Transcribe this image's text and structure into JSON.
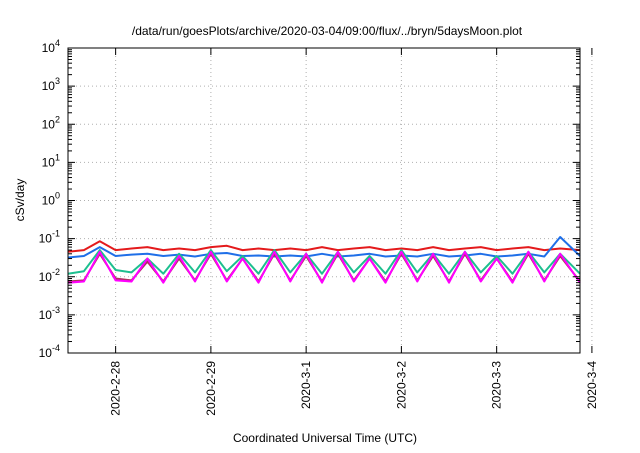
{
  "chart_data": {
    "type": "line",
    "title": "/data/run/goesPlots/archive/2020-03-04/09:00/flux/../bryn/5daysMoon.plot",
    "xlabel": "Coordinated Universal Time (UTC)",
    "ylabel": "cSv/day",
    "y_scale": "log",
    "ylim": [
      0.0001,
      10000
    ],
    "xlim": [
      "2020-02-28T00:00Z",
      "2020-03-04T09:00Z"
    ],
    "x_tick_labels": [
      "2020-2-28",
      "2020-2-29",
      "2020-3-1",
      "2020-3-2",
      "2020-3-3",
      "2020-3-4"
    ],
    "y_ticks": [
      {
        "value": 0.0001,
        "base": "10",
        "exp": "-4"
      },
      {
        "value": 0.001,
        "base": "10",
        "exp": "-3"
      },
      {
        "value": 0.01,
        "base": "10",
        "exp": "-2"
      },
      {
        "value": 0.1,
        "base": "10",
        "exp": "-1"
      },
      {
        "value": 1,
        "base": "10",
        "exp": "0"
      },
      {
        "value": 10,
        "base": "10",
        "exp": "1"
      },
      {
        "value": 100,
        "base": "10",
        "exp": "2"
      },
      {
        "value": 1000,
        "base": "10",
        "exp": "3"
      },
      {
        "value": 10000,
        "base": "10",
        "exp": "4"
      }
    ],
    "grid": true,
    "legend": "none",
    "x": [
      "2020-02-28T00:00Z",
      "2020-02-28T04:00Z",
      "2020-02-28T08:00Z",
      "2020-02-28T12:00Z",
      "2020-02-28T16:00Z",
      "2020-02-28T20:00Z",
      "2020-02-29T00:00Z",
      "2020-02-29T04:00Z",
      "2020-02-29T08:00Z",
      "2020-02-29T12:00Z",
      "2020-02-29T16:00Z",
      "2020-02-29T20:00Z",
      "2020-03-01T00:00Z",
      "2020-03-01T04:00Z",
      "2020-03-01T08:00Z",
      "2020-03-01T12:00Z",
      "2020-03-01T16:00Z",
      "2020-03-01T20:00Z",
      "2020-03-02T00:00Z",
      "2020-03-02T04:00Z",
      "2020-03-02T08:00Z",
      "2020-03-02T12:00Z",
      "2020-03-02T16:00Z",
      "2020-03-02T20:00Z",
      "2020-03-03T00:00Z",
      "2020-03-03T04:00Z",
      "2020-03-03T08:00Z",
      "2020-03-03T12:00Z",
      "2020-03-03T16:00Z",
      "2020-03-03T20:00Z",
      "2020-03-04T00:00Z",
      "2020-03-04T04:00Z",
      "2020-03-04T09:00Z"
    ],
    "series": [
      {
        "color": "#e41a1c",
        "values": [
          0.045,
          0.05,
          0.085,
          0.05,
          0.055,
          0.06,
          0.05,
          0.055,
          0.05,
          0.06,
          0.065,
          0.05,
          0.055,
          0.05,
          0.055,
          0.05,
          0.06,
          0.05,
          0.055,
          0.06,
          0.05,
          0.055,
          0.05,
          0.06,
          0.05,
          0.055,
          0.06,
          0.05,
          0.055,
          0.06,
          0.05,
          0.055,
          0.05
        ]
      },
      {
        "color": "#1f6fe8",
        "values": [
          0.032,
          0.035,
          0.06,
          0.035,
          0.038,
          0.04,
          0.035,
          0.038,
          0.034,
          0.04,
          0.042,
          0.035,
          0.036,
          0.034,
          0.036,
          0.034,
          0.04,
          0.034,
          0.036,
          0.04,
          0.034,
          0.036,
          0.034,
          0.04,
          0.034,
          0.036,
          0.04,
          0.034,
          0.036,
          0.04,
          0.034,
          0.11,
          0.035
        ]
      },
      {
        "color": "#1dbf8f",
        "values": [
          0.012,
          0.014,
          0.05,
          0.015,
          0.013,
          0.03,
          0.012,
          0.04,
          0.013,
          0.05,
          0.014,
          0.035,
          0.012,
          0.05,
          0.013,
          0.04,
          0.012,
          0.045,
          0.013,
          0.035,
          0.012,
          0.05,
          0.013,
          0.04,
          0.012,
          0.045,
          0.013,
          0.035,
          0.012,
          0.045,
          0.013,
          0.04,
          0.012
        ]
      },
      {
        "color": "#b03060",
        "values": [
          0.0075,
          0.008,
          0.04,
          0.009,
          0.008,
          0.025,
          0.0075,
          0.03,
          0.008,
          0.04,
          0.008,
          0.03,
          0.0075,
          0.04,
          0.008,
          0.035,
          0.0075,
          0.04,
          0.008,
          0.03,
          0.0075,
          0.04,
          0.008,
          0.035,
          0.0075,
          0.04,
          0.008,
          0.03,
          0.0075,
          0.04,
          0.008,
          0.035,
          0.0075
        ]
      },
      {
        "color": "#ff00ff",
        "values": [
          0.007,
          0.0075,
          0.045,
          0.008,
          0.0075,
          0.03,
          0.007,
          0.035,
          0.0075,
          0.045,
          0.0075,
          0.03,
          0.007,
          0.045,
          0.0075,
          0.04,
          0.007,
          0.045,
          0.0075,
          0.03,
          0.007,
          0.045,
          0.0075,
          0.04,
          0.007,
          0.045,
          0.0075,
          0.03,
          0.007,
          0.045,
          0.0075,
          0.04,
          0.007
        ]
      }
    ]
  }
}
